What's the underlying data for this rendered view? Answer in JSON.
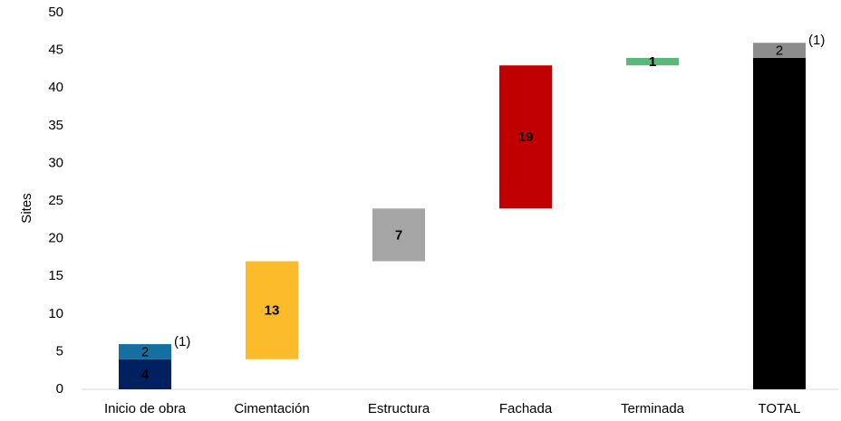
{
  "chart_data": {
    "type": "waterfall",
    "y_label": "Sites",
    "ylim": [
      0,
      50
    ],
    "yticks": [
      0,
      5,
      10,
      15,
      20,
      25,
      30,
      35,
      40,
      45,
      50
    ],
    "bars": [
      {
        "category": "Inicio de obra",
        "segments": [
          {
            "value": 4,
            "color": "#002060",
            "label_color": "#ffffff"
          },
          {
            "value": 2,
            "color": "#1470a0",
            "label_color": "#ffffff",
            "note": "(1)"
          }
        ]
      },
      {
        "category": "Cimentación",
        "segments": [
          {
            "value": 13,
            "color": "#fbbb2b",
            "label_color": "#000000"
          }
        ]
      },
      {
        "category": "Estructura",
        "segments": [
          {
            "value": 7,
            "color": "#a6a6a6",
            "label_color": "#000000"
          }
        ]
      },
      {
        "category": "Fachada",
        "segments": [
          {
            "value": 19,
            "color": "#c00000",
            "label_color": "#000000"
          }
        ]
      },
      {
        "category": "Terminada",
        "segments": [
          {
            "value": 1,
            "color": "#5cb87a",
            "label_color": "#000000"
          }
        ]
      },
      {
        "category": "TOTAL",
        "total": true,
        "segments": [
          {
            "value": 44,
            "color": "#000000",
            "label_color": "#ffffff"
          },
          {
            "value": 2,
            "color": "#8c8c8c",
            "label_color": "#ffffff",
            "note": "(1)"
          }
        ]
      }
    ]
  }
}
